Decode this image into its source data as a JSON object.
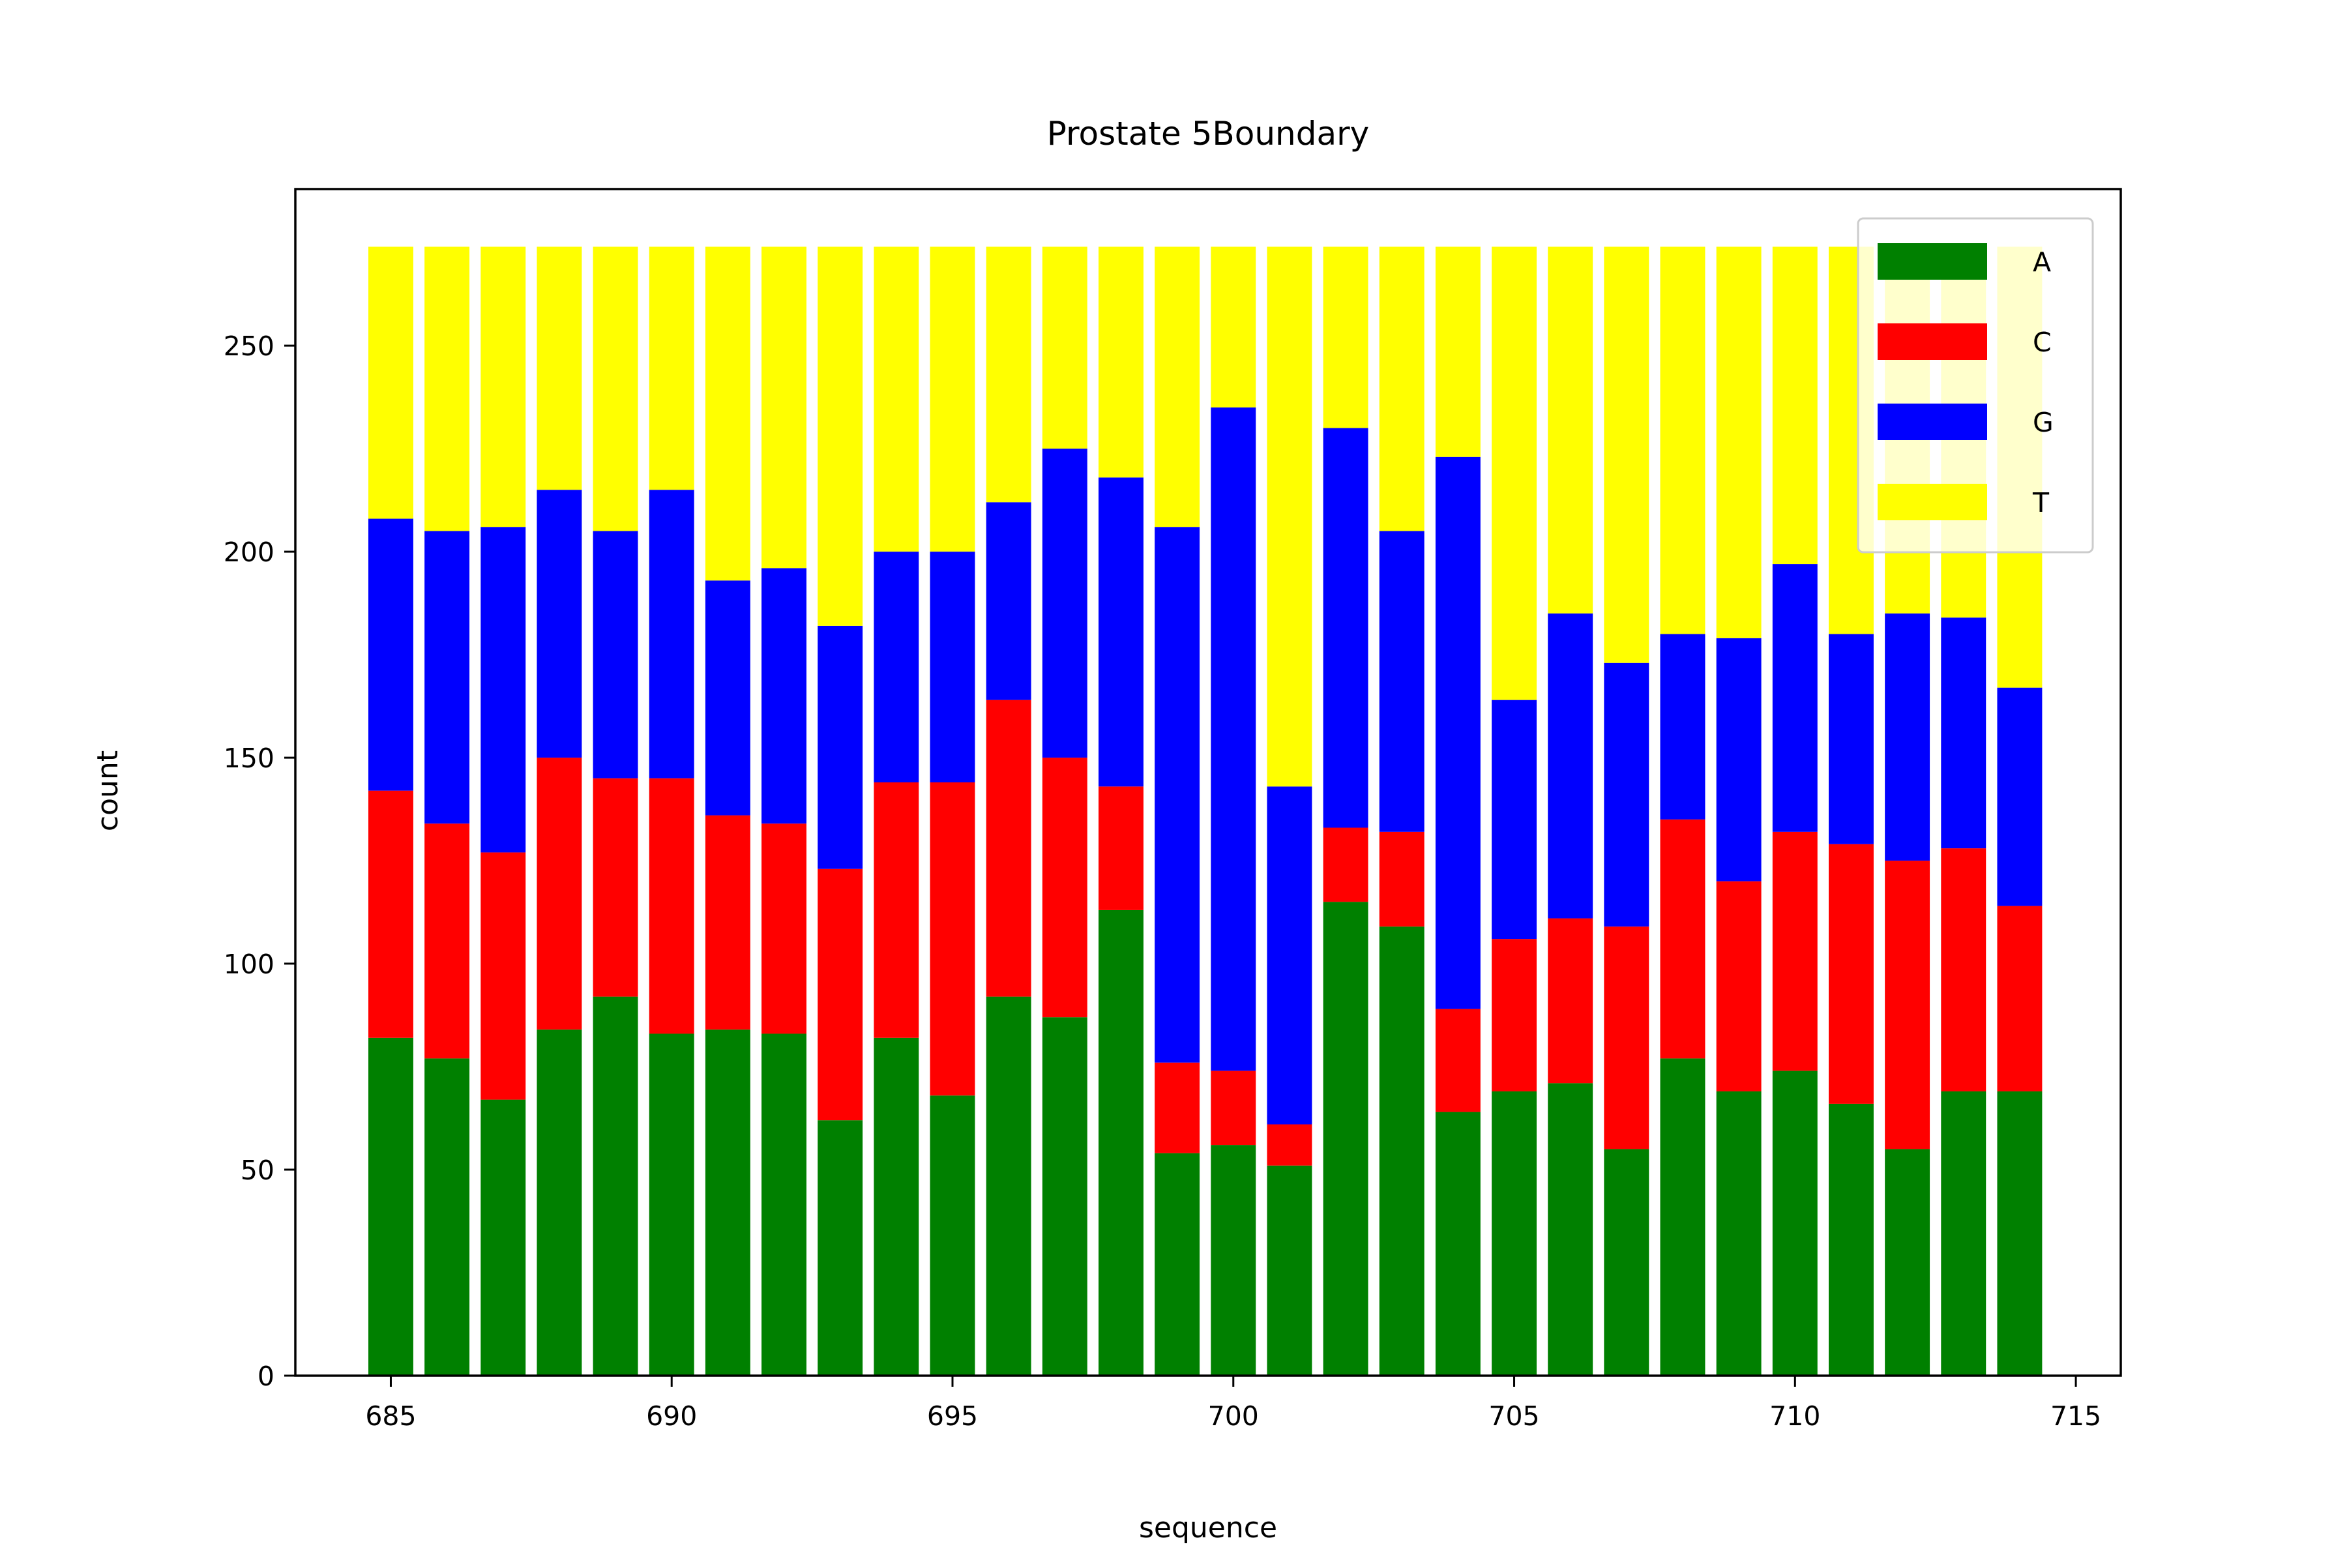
{
  "chart_data": {
    "type": "bar",
    "stacked": true,
    "title": "Prostate 5Boundary",
    "xlabel": "sequence",
    "ylabel": "count",
    "xlim": [
      683.3,
      715.8
    ],
    "ylim": [
      0,
      288
    ],
    "xticks": [
      685,
      690,
      695,
      700,
      705,
      710,
      715
    ],
    "yticks": [
      0,
      50,
      100,
      150,
      200,
      250
    ],
    "grid": false,
    "legend_position": "top-right",
    "x": [
      685,
      686,
      687,
      688,
      689,
      690,
      691,
      692,
      693,
      694,
      695,
      696,
      697,
      698,
      699,
      700,
      701,
      702,
      703,
      704,
      705,
      706,
      707,
      708,
      709,
      710,
      711,
      712,
      713,
      714
    ],
    "series": [
      {
        "name": "A",
        "color": "#008000",
        "values": [
          82,
          77,
          67,
          84,
          92,
          83,
          84,
          83,
          62,
          82,
          68,
          92,
          87,
          113,
          54,
          56,
          51,
          115,
          109,
          64,
          69,
          71,
          55,
          77,
          69,
          74,
          66,
          55,
          69,
          69
        ]
      },
      {
        "name": "C",
        "color": "#ff0000",
        "values": [
          60,
          57,
          60,
          66,
          53,
          62,
          52,
          51,
          61,
          62,
          76,
          72,
          63,
          30,
          22,
          18,
          10,
          18,
          23,
          25,
          37,
          40,
          54,
          58,
          51,
          58,
          63,
          70,
          59,
          45
        ]
      },
      {
        "name": "G",
        "color": "#0000ff",
        "values": [
          66,
          71,
          79,
          65,
          60,
          70,
          57,
          62,
          59,
          56,
          56,
          48,
          75,
          75,
          130,
          161,
          82,
          97,
          73,
          134,
          58,
          74,
          64,
          45,
          59,
          65,
          51,
          60,
          56,
          53
        ]
      },
      {
        "name": "T",
        "color": "#ffff00",
        "values": [
          66,
          69,
          68,
          59,
          69,
          59,
          81,
          78,
          92,
          74,
          74,
          62,
          49,
          56,
          68,
          39,
          131,
          44,
          69,
          51,
          110,
          89,
          101,
          94,
          95,
          77,
          94,
          89,
          90,
          107
        ]
      }
    ]
  }
}
